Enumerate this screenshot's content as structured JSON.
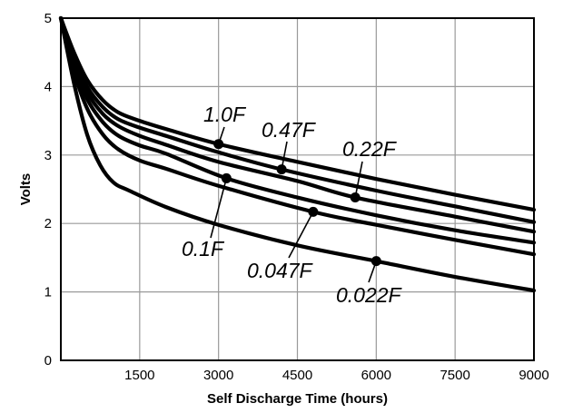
{
  "chart_data": {
    "type": "line",
    "title": "",
    "xlabel": "Self Discharge Time (hours)",
    "ylabel": "Volts",
    "xlim": [
      0,
      9000
    ],
    "ylim": [
      0,
      5
    ],
    "x_ticks": [
      1500,
      3000,
      4500,
      6000,
      7500,
      9000
    ],
    "y_ticks": [
      0,
      1,
      2,
      3,
      4,
      5
    ],
    "grid": true,
    "legend": "inline labels",
    "series": [
      {
        "name": "1.0F",
        "points": [
          [
            0,
            5
          ],
          [
            250,
            4.5
          ],
          [
            500,
            4.1
          ],
          [
            800,
            3.8
          ],
          [
            1100,
            3.62
          ],
          [
            1500,
            3.5
          ],
          [
            2000,
            3.38
          ],
          [
            3000,
            3.16
          ],
          [
            4500,
            2.9
          ],
          [
            6000,
            2.65
          ],
          [
            7500,
            2.42
          ],
          [
            9000,
            2.2
          ]
        ],
        "marker_x": 3000
      },
      {
        "name": "0.47F",
        "points": [
          [
            0,
            5
          ],
          [
            250,
            4.45
          ],
          [
            500,
            4.0
          ],
          [
            800,
            3.7
          ],
          [
            1100,
            3.52
          ],
          [
            1500,
            3.4
          ],
          [
            2000,
            3.28
          ],
          [
            3000,
            3.04
          ],
          [
            4200,
            2.79
          ],
          [
            6000,
            2.48
          ],
          [
            7500,
            2.25
          ],
          [
            9000,
            2.02
          ]
        ],
        "marker_x": 4200
      },
      {
        "name": "0.22F",
        "points": [
          [
            0,
            5
          ],
          [
            250,
            4.4
          ],
          [
            500,
            3.92
          ],
          [
            800,
            3.6
          ],
          [
            1100,
            3.42
          ],
          [
            1500,
            3.28
          ],
          [
            2000,
            3.15
          ],
          [
            3000,
            2.9
          ],
          [
            4500,
            2.62
          ],
          [
            5600,
            2.38
          ],
          [
            7500,
            2.1
          ],
          [
            9000,
            1.88
          ]
        ],
        "marker_x": 5600
      },
      {
        "name": "0.1F",
        "points": [
          [
            0,
            5
          ],
          [
            250,
            4.33
          ],
          [
            500,
            3.82
          ],
          [
            800,
            3.48
          ],
          [
            1100,
            3.28
          ],
          [
            1500,
            3.14
          ],
          [
            2000,
            3.02
          ],
          [
            3150,
            2.66
          ],
          [
            4500,
            2.38
          ],
          [
            6000,
            2.12
          ],
          [
            7500,
            1.9
          ],
          [
            9000,
            1.72
          ]
        ],
        "marker_x": 3150
      },
      {
        "name": "0.047F",
        "points": [
          [
            0,
            5
          ],
          [
            250,
            4.22
          ],
          [
            500,
            3.68
          ],
          [
            800,
            3.3
          ],
          [
            1100,
            3.08
          ],
          [
            1500,
            2.92
          ],
          [
            2000,
            2.8
          ],
          [
            3000,
            2.55
          ],
          [
            4800,
            2.17
          ],
          [
            6000,
            1.98
          ],
          [
            7500,
            1.76
          ],
          [
            9000,
            1.55
          ]
        ],
        "marker_x": 4800
      },
      {
        "name": "0.022F",
        "points": [
          [
            0,
            5
          ],
          [
            250,
            4.05
          ],
          [
            500,
            3.3
          ],
          [
            750,
            2.85
          ],
          [
            1000,
            2.6
          ],
          [
            1300,
            2.48
          ],
          [
            2000,
            2.24
          ],
          [
            3000,
            1.98
          ],
          [
            4500,
            1.68
          ],
          [
            6000,
            1.45
          ],
          [
            7500,
            1.22
          ],
          [
            9000,
            1.02
          ]
        ],
        "marker_x": 6000
      }
    ],
    "annotations": [
      {
        "text": "1.0F",
        "series": "1.0F"
      },
      {
        "text": "0.47F",
        "series": "0.47F"
      },
      {
        "text": "0.22F",
        "series": "0.22F"
      },
      {
        "text": "0.1F",
        "series": "0.1F"
      },
      {
        "text": "0.047F",
        "series": "0.047F"
      },
      {
        "text": "0.022F",
        "series": "0.022F"
      }
    ]
  }
}
